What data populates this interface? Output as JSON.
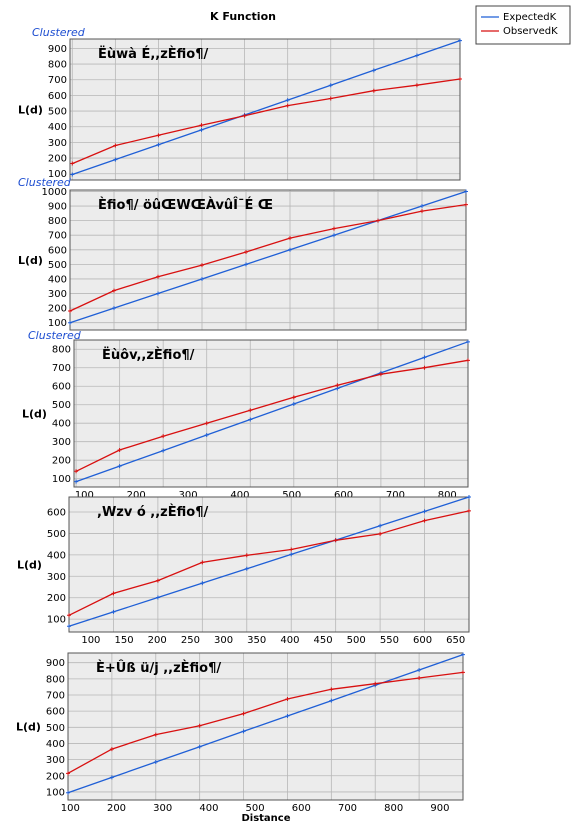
{
  "title": "K Function",
  "xlabel": "Distance",
  "legend": {
    "items": [
      {
        "name": "ExpectedK",
        "color": "#1f5fd6"
      },
      {
        "name": "ObservedK",
        "color": "#d81010"
      }
    ]
  },
  "chart_data": [
    {
      "type": "line",
      "annotation": "Clustered",
      "panel_title": "Ëùwà É,,zÈfio¶/",
      "ylabel": "L(d)",
      "xlim": [
        90,
        950
      ],
      "ylim": [
        60,
        960
      ],
      "yticks": [
        100,
        200,
        300,
        400,
        500,
        600,
        700,
        800,
        900
      ],
      "xticks": [],
      "x": [
        95,
        190,
        285,
        380,
        475,
        570,
        665,
        760,
        855,
        950
      ],
      "series": [
        {
          "name": "ExpectedK",
          "values": [
            95,
            190,
            285,
            380,
            475,
            570,
            665,
            760,
            855,
            950
          ]
        },
        {
          "name": "ObservedK",
          "values": [
            165,
            280,
            345,
            410,
            470,
            535,
            580,
            630,
            665,
            705
          ]
        }
      ]
    },
    {
      "type": "line",
      "annotation": "Clustered",
      "panel_title": "Èfio¶/ öûŒWŒÀvûÎ¯É Œ",
      "ylabel": "L(d)",
      "xlim": [
        100,
        1000
      ],
      "ylim": [
        50,
        1010
      ],
      "yticks": [
        100,
        200,
        300,
        400,
        500,
        600,
        700,
        800,
        900,
        1000
      ],
      "xticks": [],
      "x": [
        100,
        200,
        300,
        400,
        500,
        600,
        700,
        800,
        900,
        1000
      ],
      "series": [
        {
          "name": "ExpectedK",
          "values": [
            100,
            200,
            300,
            400,
            500,
            600,
            700,
            800,
            900,
            1000
          ]
        },
        {
          "name": "ObservedK",
          "values": [
            180,
            320,
            415,
            495,
            585,
            680,
            745,
            800,
            865,
            910
          ]
        }
      ]
    },
    {
      "type": "line",
      "annotation": "Clustered",
      "panel_title": "Ëùôv,,zÈfio¶/",
      "ylabel": "L(d)",
      "xlim": [
        80,
        840
      ],
      "ylim": [
        55,
        850
      ],
      "yticks": [
        100,
        200,
        300,
        400,
        500,
        600,
        700,
        800
      ],
      "xticks": [
        100,
        200,
        300,
        400,
        500,
        600,
        700,
        800
      ],
      "x": [
        84,
        168,
        252,
        336,
        420,
        504,
        588,
        672,
        756,
        840
      ],
      "series": [
        {
          "name": "ExpectedK",
          "values": [
            84,
            168,
            252,
            336,
            420,
            504,
            588,
            672,
            756,
            840
          ]
        },
        {
          "name": "ObservedK",
          "values": [
            140,
            255,
            330,
            400,
            470,
            540,
            605,
            665,
            700,
            740
          ]
        }
      ]
    },
    {
      "type": "line",
      "annotation": "",
      "panel_title": ",Wzv ó ,,zÈfio¶/",
      "ylabel": "L(d)",
      "xlim": [
        67,
        670
      ],
      "ylim": [
        40,
        670
      ],
      "yticks": [
        100,
        200,
        300,
        400,
        500,
        600
      ],
      "xticks": [
        100,
        150,
        200,
        250,
        300,
        350,
        400,
        450,
        500,
        550,
        600,
        650
      ],
      "x": [
        67,
        134,
        201,
        268,
        335,
        402,
        469,
        536,
        603,
        670
      ],
      "series": [
        {
          "name": "ExpectedK",
          "values": [
            67,
            134,
            201,
            268,
            335,
            402,
            469,
            536,
            603,
            670
          ]
        },
        {
          "name": "ObservedK",
          "values": [
            118,
            220,
            280,
            365,
            398,
            425,
            468,
            498,
            560,
            605
          ]
        }
      ]
    },
    {
      "type": "line",
      "annotation": "",
      "panel_title": "È+Ûß ü/j ,,zÈfio¶/",
      "ylabel": "L(d)",
      "xlim": [
        95,
        950
      ],
      "ylim": [
        50,
        960
      ],
      "yticks": [
        100,
        200,
        300,
        400,
        500,
        600,
        700,
        800,
        900
      ],
      "xticks": [
        100,
        200,
        300,
        400,
        500,
        600,
        700,
        800,
        900
      ],
      "x": [
        95,
        190,
        285,
        380,
        475,
        570,
        665,
        760,
        855,
        950
      ],
      "series": [
        {
          "name": "ExpectedK",
          "values": [
            95,
            190,
            285,
            380,
            475,
            570,
            665,
            760,
            855,
            950
          ]
        },
        {
          "name": "ObservedK",
          "values": [
            215,
            365,
            455,
            510,
            585,
            675,
            735,
            770,
            805,
            840
          ]
        }
      ]
    }
  ]
}
